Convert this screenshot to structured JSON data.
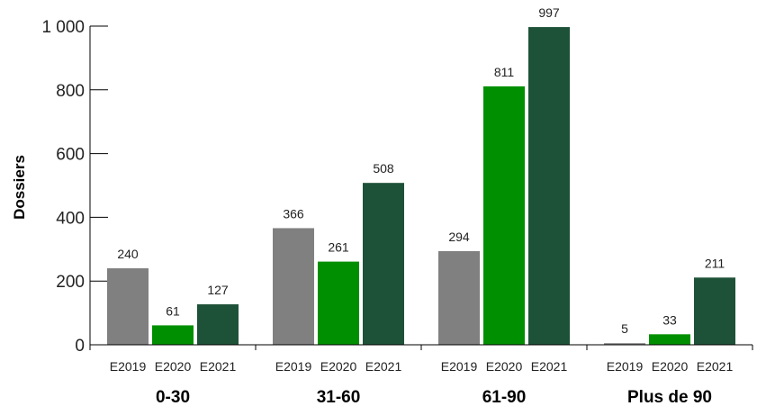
{
  "chart_data": {
    "type": "bar",
    "ylabel": "Dossiers",
    "ylim": [
      0,
      1000
    ],
    "yticks": [
      0,
      200,
      400,
      600,
      800,
      1000
    ],
    "ytick_labels": [
      "0",
      "200",
      "400",
      "600",
      "800",
      "1 000"
    ],
    "grid": false,
    "legend": "none",
    "categories": [
      "0-30",
      "31-60",
      "61-90",
      "Plus de 90"
    ],
    "series": [
      {
        "name": "E2019",
        "color": "#808080",
        "values": [
          240,
          366,
          294,
          5
        ]
      },
      {
        "name": "E2020",
        "color": "#008f00",
        "values": [
          61,
          261,
          811,
          33
        ]
      },
      {
        "name": "E2021",
        "color": "#1e5238",
        "values": [
          127,
          508,
          997,
          211
        ]
      }
    ]
  }
}
